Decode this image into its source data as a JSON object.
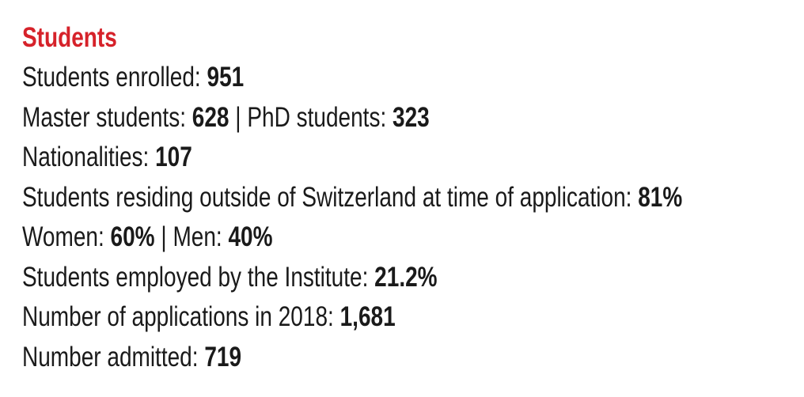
{
  "title": "Students",
  "separator": "|",
  "lines": [
    [
      {
        "label": "Students enrolled:",
        "value": "951"
      }
    ],
    [
      {
        "label": "Master students:",
        "value": "628"
      },
      {
        "label": "PhD students:",
        "value": "323"
      }
    ],
    [
      {
        "label": "Nationalities:",
        "value": "107"
      }
    ],
    [
      {
        "label": "Students residing outside of Switzerland at time of application:",
        "value": "81%"
      }
    ],
    [
      {
        "label": "Women:",
        "value": "60%"
      },
      {
        "label": "Men:",
        "value": "40%"
      }
    ],
    [
      {
        "label": "Students employed by the Institute:",
        "value": "21.2%"
      }
    ],
    [
      {
        "label": "Number of applications in 2018:",
        "value": "1,681"
      }
    ],
    [
      {
        "label": "Number admitted:",
        "value": "719"
      }
    ]
  ]
}
